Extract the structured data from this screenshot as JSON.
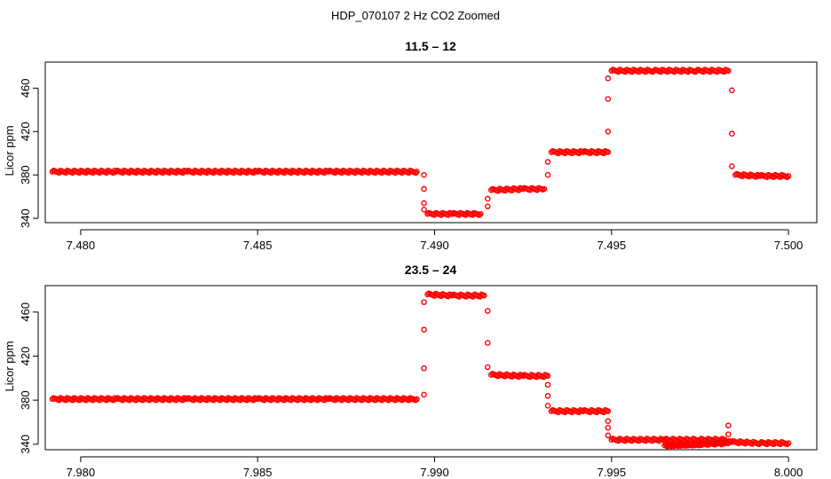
{
  "figure": {
    "title": "HDP_070107  2 Hz CO2 Zoomed"
  },
  "chart_data": [
    {
      "type": "scatter",
      "title": "11.5 – 12",
      "xlabel": "",
      "ylabel": "Licor ppm",
      "xlim": [
        7.479,
        7.5008
      ],
      "ylim": [
        336,
        484
      ],
      "xticks": [
        7.48,
        7.485,
        7.49,
        7.495,
        7.5
      ],
      "xtick_labels": [
        "7.480",
        "7.485",
        "7.490",
        "7.495",
        "7.500"
      ],
      "yticks": [
        340,
        380,
        420,
        460
      ],
      "ytick_labels": [
        "340",
        "380",
        "420",
        "460"
      ],
      "marker_color": "#ff0000",
      "grid": false,
      "series": [
        {
          "points": [
            [
              7.4792,
              383
            ],
            [
              7.481,
              383
            ],
            [
              7.483,
              383
            ],
            [
              7.485,
              383
            ],
            [
              7.487,
              383
            ],
            [
              7.4895,
              383
            ],
            [
              7.4897,
              380
            ],
            [
              7.4897,
              367
            ],
            [
              7.4897,
              354
            ],
            [
              7.4897,
              348
            ],
            [
              7.4898,
              344
            ],
            [
              7.4905,
              344
            ],
            [
              7.4913,
              344
            ],
            [
              7.4915,
              351
            ],
            [
              7.4915,
              358
            ],
            [
              7.4916,
              366
            ],
            [
              7.4925,
              367
            ],
            [
              7.4931,
              367
            ],
            [
              7.4932,
              380
            ],
            [
              7.4932,
              392
            ],
            [
              7.4933,
              401
            ],
            [
              7.4942,
              401
            ],
            [
              7.4949,
              401
            ],
            [
              7.4949,
              420
            ],
            [
              7.4949,
              450
            ],
            [
              7.4949,
              469
            ],
            [
              7.495,
              476
            ],
            [
              7.4962,
              476
            ],
            [
              7.4974,
              476
            ],
            [
              7.4983,
              476
            ],
            [
              7.4984,
              458
            ],
            [
              7.4984,
              418
            ],
            [
              7.4984,
              388
            ],
            [
              7.4985,
              380
            ],
            [
              7.4992,
              379
            ],
            [
              7.5,
              379
            ]
          ]
        }
      ]
    },
    {
      "type": "scatter",
      "title": "23.5 – 24",
      "xlabel": "",
      "ylabel": "Licor ppm",
      "xlim": [
        7.979,
        8.0008
      ],
      "ylim": [
        335,
        484
      ],
      "xticks": [
        7.98,
        7.985,
        7.99,
        7.995,
        8.0
      ],
      "xtick_labels": [
        "7.980",
        "7.985",
        "7.990",
        "7.995",
        "8.000"
      ],
      "yticks": [
        340,
        380,
        420,
        460
      ],
      "ytick_labels": [
        "340",
        "380",
        "420",
        "460"
      ],
      "marker_color": "#ff0000",
      "grid": false,
      "series": [
        {
          "points": [
            [
              7.9792,
              381
            ],
            [
              7.981,
              381
            ],
            [
              7.983,
              381
            ],
            [
              7.985,
              381
            ],
            [
              7.987,
              381
            ],
            [
              7.9895,
              381
            ],
            [
              7.9897,
              385
            ],
            [
              7.9897,
              409
            ],
            [
              7.9897,
              444
            ],
            [
              7.9897,
              469
            ],
            [
              7.9898,
              476
            ],
            [
              7.9905,
              475
            ],
            [
              7.9914,
              475
            ],
            [
              7.9915,
              461
            ],
            [
              7.9915,
              432
            ],
            [
              7.9915,
              410
            ],
            [
              7.9916,
              403
            ],
            [
              7.9925,
              402
            ],
            [
              7.9932,
              402
            ],
            [
              7.9932,
              394
            ],
            [
              7.9932,
              384
            ],
            [
              7.9932,
              375
            ],
            [
              7.9933,
              370
            ],
            [
              7.9942,
              370
            ],
            [
              7.9949,
              370
            ],
            [
              7.9949,
              361
            ],
            [
              7.9949,
              355
            ],
            [
              7.9949,
              348
            ],
            [
              7.995,
              344
            ],
            [
              7.9965,
              344
            ],
            [
              7.9975,
              344
            ],
            [
              7.9982,
              344
            ],
            [
              7.9983,
              357
            ],
            [
              7.9983,
              349
            ],
            [
              7.9983,
              341
            ],
            [
              7.9965,
              339
            ],
            [
              7.9975,
              340
            ],
            [
              7.9984,
              342
            ],
            [
              7.9992,
              341
            ],
            [
              8.0,
              341
            ]
          ]
        }
      ]
    }
  ]
}
